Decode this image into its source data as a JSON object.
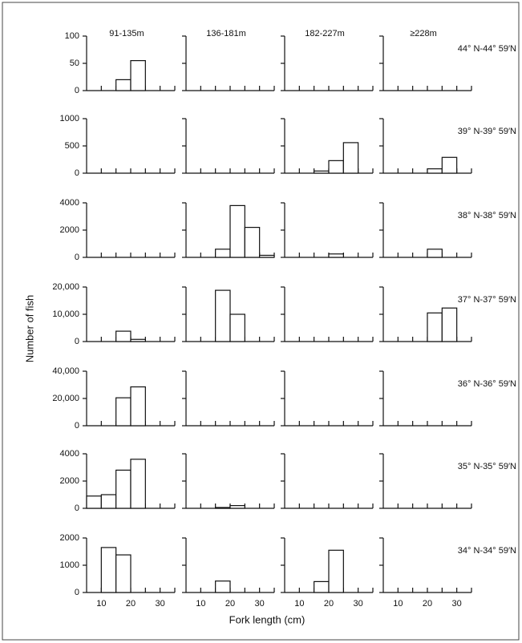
{
  "figure": {
    "y_label": "Number of fish",
    "x_label": "Fork length (cm)",
    "columns": [
      "91-135m",
      "136-181m",
      "182-227m",
      "≥228m"
    ]
  },
  "chart_data": [
    {
      "type": "histogram",
      "title": "44° N-44° 59′N",
      "bins": [
        5,
        10,
        15,
        20,
        25,
        30,
        35
      ],
      "xlim": [
        5,
        35
      ],
      "ylim": [
        0,
        100
      ],
      "yticks": [
        0,
        50,
        100
      ],
      "series": [
        {
          "values": [
            0,
            0,
            20,
            55,
            0,
            0
          ]
        },
        {
          "values": [
            0,
            0,
            0,
            0,
            0,
            0
          ]
        },
        {
          "values": [
            0,
            0,
            0,
            0,
            0,
            0
          ]
        },
        {
          "values": [
            0,
            0,
            0,
            0,
            0,
            0
          ]
        }
      ]
    },
    {
      "type": "histogram",
      "title": "39° N-39° 59′N",
      "bins": [
        5,
        10,
        15,
        20,
        25,
        30,
        35
      ],
      "xlim": [
        5,
        35
      ],
      "ylim": [
        0,
        1000
      ],
      "yticks": [
        0,
        500,
        1000
      ],
      "series": [
        {
          "values": [
            0,
            0,
            0,
            0,
            0,
            0
          ]
        },
        {
          "values": [
            0,
            0,
            0,
            0,
            0,
            0
          ]
        },
        {
          "values": [
            0,
            0,
            40,
            230,
            560,
            0
          ]
        },
        {
          "values": [
            0,
            0,
            0,
            80,
            290,
            0
          ]
        }
      ]
    },
    {
      "type": "histogram",
      "title": "38° N-38° 59′N",
      "bins": [
        5,
        10,
        15,
        20,
        25,
        30,
        35
      ],
      "xlim": [
        5,
        35
      ],
      "ylim": [
        0,
        4000
      ],
      "yticks": [
        0,
        2000,
        4000
      ],
      "series": [
        {
          "values": [
            0,
            0,
            0,
            0,
            0,
            0
          ]
        },
        {
          "values": [
            0,
            0,
            600,
            3800,
            2200,
            150
          ]
        },
        {
          "values": [
            0,
            0,
            0,
            250,
            0,
            0
          ]
        },
        {
          "values": [
            0,
            0,
            0,
            600,
            0,
            0
          ]
        }
      ]
    },
    {
      "type": "histogram",
      "title": "37° N-37° 59′N",
      "bins": [
        5,
        10,
        15,
        20,
        25,
        30,
        35
      ],
      "xlim": [
        5,
        35
      ],
      "ylim": [
        0,
        20000
      ],
      "yticks": [
        0,
        {
          "value": 10000,
          "label": "10,000"
        },
        {
          "value": 20000,
          "label": "20,000"
        }
      ],
      "series": [
        {
          "values": [
            0,
            0,
            3800,
            800,
            0,
            0
          ]
        },
        {
          "values": [
            0,
            0,
            18800,
            10000,
            0,
            0
          ]
        },
        {
          "values": [
            0,
            0,
            0,
            0,
            0,
            0
          ]
        },
        {
          "values": [
            0,
            0,
            0,
            10500,
            12300,
            0
          ]
        }
      ]
    },
    {
      "type": "histogram",
      "title": "36° N-36° 59′N",
      "bins": [
        5,
        10,
        15,
        20,
        25,
        30,
        35
      ],
      "xlim": [
        5,
        35
      ],
      "ylim": [
        0,
        40000
      ],
      "yticks": [
        0,
        {
          "value": 20000,
          "label": "20,000"
        },
        {
          "value": 40000,
          "label": "40,000"
        }
      ],
      "series": [
        {
          "values": [
            0,
            0,
            20500,
            28500,
            0,
            0
          ]
        },
        {
          "values": [
            0,
            0,
            0,
            0,
            0,
            0
          ]
        },
        {
          "values": [
            0,
            0,
            0,
            0,
            0,
            0
          ]
        },
        {
          "values": [
            0,
            0,
            0,
            0,
            0,
            0
          ]
        }
      ]
    },
    {
      "type": "histogram",
      "title": "35° N-35° 59′N",
      "bins": [
        5,
        10,
        15,
        20,
        25,
        30,
        35
      ],
      "xlim": [
        5,
        35
      ],
      "ylim": [
        0,
        4000
      ],
      "yticks": [
        0,
        2000,
        4000
      ],
      "series": [
        {
          "values": [
            900,
            1000,
            2800,
            3600,
            0,
            0
          ]
        },
        {
          "values": [
            0,
            0,
            60,
            200,
            0,
            0
          ]
        },
        {
          "values": [
            0,
            0,
            0,
            0,
            0,
            0
          ]
        },
        {
          "values": [
            0,
            0,
            0,
            0,
            0,
            0
          ]
        }
      ]
    },
    {
      "type": "histogram",
      "title": "34° N-34° 59′N",
      "bins": [
        5,
        10,
        15,
        20,
        25,
        30,
        35
      ],
      "xlim": [
        5,
        35
      ],
      "ylim": [
        0,
        2000
      ],
      "yticks": [
        0,
        1000,
        2000
      ],
      "xticks": [
        10,
        20,
        30
      ],
      "series": [
        {
          "values": [
            0,
            1650,
            1380,
            0,
            0,
            0
          ]
        },
        {
          "values": [
            0,
            0,
            420,
            0,
            0,
            0
          ]
        },
        {
          "values": [
            0,
            0,
            400,
            1550,
            0,
            0
          ]
        },
        {
          "values": [
            0,
            0,
            0,
            0,
            0,
            0
          ]
        }
      ]
    }
  ]
}
